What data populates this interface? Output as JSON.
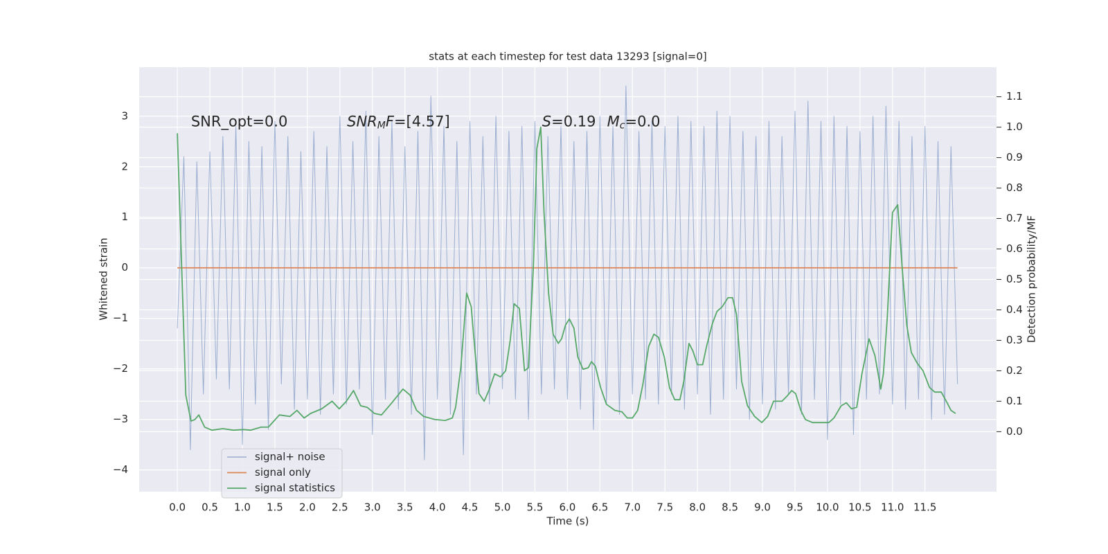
{
  "chart_data": {
    "type": "line",
    "title": "stats at each timestep for test data 13293 [signal=0]",
    "x_label": "Time (s)",
    "y_label": "Whitened strain",
    "y2_label": "Detection probability/MF",
    "xlim": [
      -0.587,
      12.6
    ],
    "ylim": [
      -4.43,
      3.97
    ],
    "y2lim": [
      -0.197,
      1.197
    ],
    "xticks": [
      {
        "value": 0,
        "label": "0.0"
      },
      0.5,
      {
        "value": 1,
        "label": "1.0"
      },
      1.5,
      {
        "value": 2,
        "label": "2.0"
      },
      2.5,
      {
        "value": 3,
        "label": "3.0"
      },
      3.5,
      {
        "value": 4,
        "label": "4.0"
      },
      4.5,
      {
        "value": 5,
        "label": "5.0"
      },
      5.5,
      {
        "value": 6,
        "label": "6.0"
      },
      6.5,
      {
        "value": 7,
        "label": "7.0"
      },
      7.5,
      {
        "value": 8,
        "label": "8.0"
      },
      8.5,
      {
        "value": 9,
        "label": "9.0"
      },
      9.5,
      {
        "value": 10,
        "label": "10.0"
      },
      10.5,
      {
        "value": 11,
        "label": "11.0"
      },
      11.5
    ],
    "yticks": [
      {
        "value": -4,
        "label": "−4"
      },
      {
        "value": -3,
        "label": "−3"
      },
      {
        "value": -2,
        "label": "−2"
      },
      {
        "value": -1,
        "label": "−1"
      },
      0,
      1,
      2,
      3
    ],
    "y2ticks": [
      {
        "value": 0,
        "label": "0.0"
      },
      0.1,
      0.2,
      0.3,
      0.4,
      0.5,
      0.6,
      0.7,
      0.8,
      0.9,
      {
        "value": 1,
        "label": "1.0"
      },
      1.1
    ],
    "grid": true,
    "legend": "lower left",
    "annotations": [
      {
        "x": 0.21,
        "y": 2.88,
        "parts": [
          {
            "text": "SNR_opt=0.0",
            "style": "normal"
          }
        ]
      },
      {
        "x": 2.61,
        "y": 2.88,
        "parts": [
          {
            "text": "SNR",
            "style": "italic"
          },
          {
            "text": "M",
            "style": "italic-sub"
          },
          {
            "text": "F",
            "style": "italic"
          },
          {
            "text": "=[4.57]",
            "style": "normal"
          }
        ]
      },
      {
        "x": 5.61,
        "y": 2.88,
        "parts": [
          {
            "text": "S",
            "style": "italic"
          },
          {
            "text": "=0.19",
            "style": "normal"
          }
        ]
      },
      {
        "x": 6.61,
        "y": 2.88,
        "parts": [
          {
            "text": "M",
            "style": "italic"
          },
          {
            "text": "c",
            "style": "italic-sub"
          },
          {
            "text": "=0.0",
            "style": "normal"
          }
        ]
      }
    ],
    "series": [
      {
        "name": "signal+ noise",
        "color": "#4c72b0",
        "alpha": 0.5,
        "x": [
          0,
          0.1,
          0.2,
          0.3,
          0.4,
          0.5,
          0.6,
          0.7,
          0.8,
          0.9,
          1,
          1.1,
          1.2,
          1.3,
          1.4,
          1.5,
          1.6,
          1.7,
          1.8,
          1.9,
          2,
          2.1,
          2.2,
          2.3,
          2.4,
          2.5,
          2.6,
          2.7,
          2.8,
          2.9,
          3,
          3.1,
          3.2,
          3.3,
          3.4,
          3.5,
          3.6,
          3.7,
          3.8,
          3.9,
          4,
          4.1,
          4.2,
          4.3,
          4.4,
          4.5,
          4.6,
          4.7,
          4.8,
          4.9,
          5,
          5.1,
          5.2,
          5.3,
          5.4,
          5.5,
          5.6,
          5.7,
          5.8,
          5.9,
          6,
          6.1,
          6.2,
          6.3,
          6.4,
          6.5,
          6.6,
          6.7,
          6.8,
          6.9,
          7,
          7.1,
          7.2,
          7.3,
          7.4,
          7.5,
          7.6,
          7.7,
          7.8,
          7.9,
          8,
          8.1,
          8.2,
          8.3,
          8.4,
          8.5,
          8.6,
          8.7,
          8.8,
          8.9,
          9,
          9.1,
          9.2,
          9.3,
          9.4,
          9.5,
          9.6,
          9.7,
          9.8,
          9.9,
          10,
          10.1,
          10.2,
          10.3,
          10.4,
          10.5,
          10.6,
          10.7,
          10.8,
          10.9,
          11,
          11.1,
          11.2,
          11.3,
          11.4,
          11.5,
          11.6,
          11.7,
          11.8,
          11.9,
          12
        ],
        "values": [
          -1.2,
          2.2,
          -3.6,
          2.1,
          -2.5,
          2.3,
          -2.2,
          2.6,
          -2.4,
          2.8,
          -3.5,
          2.5,
          -2.7,
          2.4,
          -3.2,
          2.9,
          -2.3,
          2.6,
          -2.8,
          2.3,
          -2.6,
          2.7,
          -2.9,
          2.4,
          -2.5,
          3.0,
          -2.7,
          2.5,
          -2.4,
          3.1,
          -3.3,
          2.6,
          -2.6,
          2.9,
          -2.8,
          2.4,
          -2.9,
          2.7,
          -3.8,
          3.4,
          -2.6,
          2.8,
          -2.9,
          2.5,
          -3.7,
          2.9,
          -2.5,
          2.6,
          -2.7,
          3.0,
          -2.4,
          2.7,
          -2.6,
          2.8,
          -3.0,
          2.9,
          -2.5,
          2.6,
          -2.4,
          2.8,
          -2.6,
          2.5,
          -2.8,
          2.7,
          -3.2,
          3.0,
          -2.7,
          2.8,
          -2.9,
          3.6,
          -2.5,
          2.7,
          -2.6,
          2.9,
          -2.7,
          2.8,
          -2.5,
          3.0,
          -2.8,
          2.9,
          -2.5,
          2.8,
          -2.9,
          3.1,
          -2.6,
          3.0,
          -2.4,
          2.7,
          -3.0,
          2.6,
          -2.7,
          2.9,
          -2.8,
          2.6,
          -2.5,
          3.1,
          -2.9,
          3.3,
          -2.6,
          2.9,
          -3.4,
          3.0,
          -2.7,
          2.8,
          -3.3,
          2.7,
          -2.6,
          3.0,
          -2.5,
          3.2,
          -2.7,
          2.9,
          -2.8,
          2.6,
          -2.6,
          2.8,
          -3.0,
          2.5,
          -2.9,
          2.4,
          -2.3
        ]
      },
      {
        "name": "signal only",
        "color": "#dd8452",
        "x": [
          0,
          12
        ],
        "values": [
          0,
          0
        ]
      },
      {
        "name": "signal statistics",
        "color": "#55a868",
        "axis": "y2",
        "x": [
          0.0,
          0.13,
          0.21,
          0.27,
          0.33,
          0.42,
          0.53,
          0.7,
          0.86,
          1.02,
          1.13,
          1.29,
          1.4,
          1.57,
          1.73,
          1.84,
          1.95,
          2.05,
          2.22,
          2.38,
          2.49,
          2.6,
          2.71,
          2.82,
          2.92,
          3.03,
          3.14,
          3.3,
          3.47,
          3.58,
          3.68,
          3.79,
          3.96,
          4.12,
          4.23,
          4.28,
          4.36,
          4.45,
          4.52,
          4.58,
          4.64,
          4.72,
          4.8,
          4.88,
          4.97,
          5.05,
          5.12,
          5.18,
          5.26,
          5.34,
          5.4,
          5.48,
          5.53,
          5.59,
          5.64,
          5.71,
          5.78,
          5.86,
          5.91,
          5.97,
          6.03,
          6.1,
          6.16,
          6.24,
          6.32,
          6.37,
          6.43,
          6.51,
          6.6,
          6.73,
          6.84,
          6.92,
          7.0,
          7.08,
          7.16,
          7.25,
          7.33,
          7.4,
          7.49,
          7.57,
          7.65,
          7.73,
          7.79,
          7.87,
          7.93,
          8.0,
          8.08,
          8.14,
          8.23,
          8.3,
          8.38,
          8.47,
          8.54,
          8.6,
          8.68,
          8.77,
          8.88,
          8.99,
          9.08,
          9.17,
          9.3,
          9.37,
          9.45,
          9.51,
          9.59,
          9.66,
          9.77,
          9.93,
          10.02,
          10.1,
          10.21,
          10.29,
          10.37,
          10.45,
          10.53,
          10.64,
          10.73,
          10.82,
          10.86,
          10.92,
          11.0,
          11.08,
          11.15,
          11.22,
          11.29,
          11.38,
          11.47,
          11.57,
          11.65,
          11.75,
          11.84,
          11.9,
          11.97
        ],
        "values": [
          0.98,
          0.12,
          0.035,
          0.04,
          0.055,
          0.015,
          0.005,
          0.01,
          0.005,
          0.007,
          0.005,
          0.015,
          0.015,
          0.055,
          0.05,
          0.07,
          0.045,
          0.06,
          0.075,
          0.1,
          0.075,
          0.1,
          0.135,
          0.085,
          0.08,
          0.06,
          0.055,
          0.095,
          0.14,
          0.12,
          0.07,
          0.05,
          0.04,
          0.037,
          0.045,
          0.08,
          0.21,
          0.455,
          0.41,
          0.26,
          0.125,
          0.1,
          0.14,
          0.19,
          0.18,
          0.2,
          0.3,
          0.42,
          0.405,
          0.2,
          0.21,
          0.56,
          0.93,
          1.0,
          0.72,
          0.455,
          0.32,
          0.29,
          0.305,
          0.35,
          0.37,
          0.34,
          0.245,
          0.205,
          0.21,
          0.23,
          0.215,
          0.145,
          0.09,
          0.07,
          0.065,
          0.045,
          0.045,
          0.07,
          0.155,
          0.28,
          0.32,
          0.31,
          0.245,
          0.145,
          0.105,
          0.105,
          0.165,
          0.29,
          0.265,
          0.22,
          0.22,
          0.28,
          0.355,
          0.395,
          0.41,
          0.44,
          0.44,
          0.385,
          0.165,
          0.085,
          0.05,
          0.03,
          0.05,
          0.1,
          0.1,
          0.115,
          0.135,
          0.125,
          0.07,
          0.04,
          0.03,
          0.03,
          0.03,
          0.045,
          0.085,
          0.095,
          0.075,
          0.08,
          0.19,
          0.305,
          0.25,
          0.14,
          0.19,
          0.375,
          0.72,
          0.745,
          0.535,
          0.35,
          0.26,
          0.225,
          0.2,
          0.145,
          0.13,
          0.13,
          0.095,
          0.07,
          0.06
        ]
      }
    ]
  }
}
